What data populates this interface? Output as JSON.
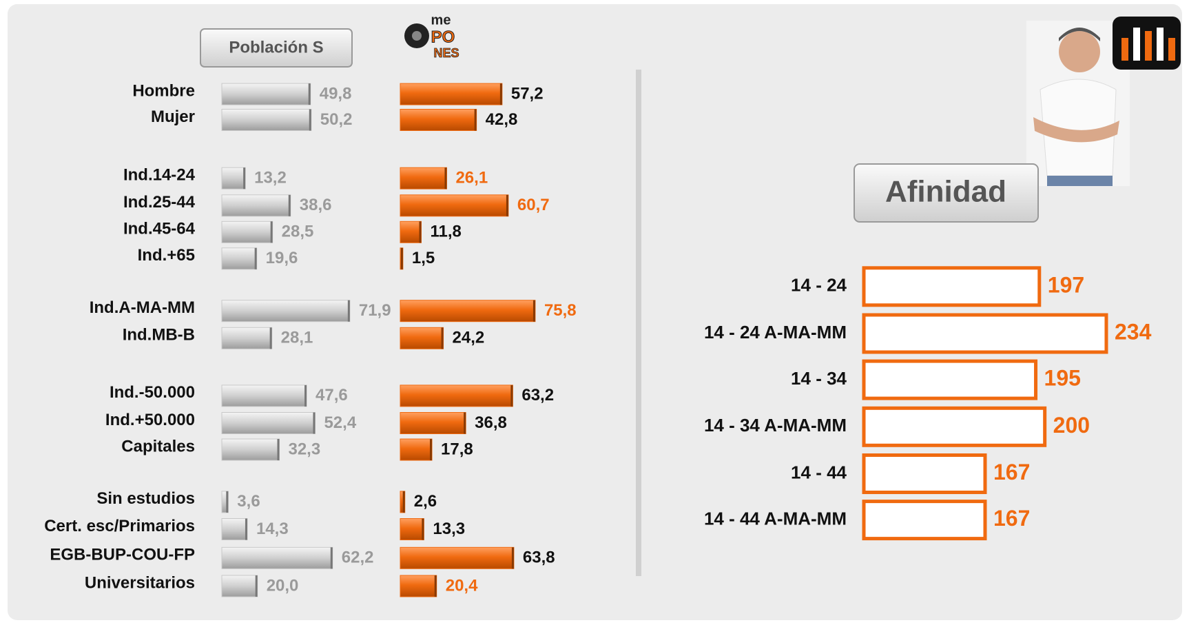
{
  "logo": {
    "lines": [
      "me",
      "PO",
      "NES"
    ]
  },
  "chart_data": [
    {
      "type": "bar",
      "orientation": "horizontal",
      "categories": [
        "Hombre",
        "Mujer",
        "Ind.14-24",
        "Ind.25-44",
        "Ind.45-64",
        "Ind.+65",
        "Ind.A-MA-MM",
        "Ind.MB-B",
        "Ind.-50.000",
        "Ind.+50.000",
        "Capitales",
        "Sin estudios",
        "Cert. esc/Primarios",
        "EGB-BUP-COU-FP",
        "Universitarios"
      ],
      "xlim": [
        0,
        100
      ],
      "series": [
        {
          "name": "Población S",
          "color": "#c8c8c8",
          "label_color": "#9a9a9a",
          "values": [
            49.8,
            50.2,
            13.2,
            38.6,
            28.5,
            19.6,
            71.9,
            28.1,
            47.6,
            52.4,
            32.3,
            3.6,
            14.3,
            62.2,
            20.0
          ],
          "value_labels": [
            "49,8",
            "50,2",
            "13,2",
            "38,6",
            "28,5",
            "19,6",
            "71,9",
            "28,1",
            "47,6",
            "52,4",
            "32,3",
            "3,6",
            "14,3",
            "62,2",
            "20,0"
          ]
        },
        {
          "color": "#f06a10",
          "values": [
            57.2,
            42.8,
            26.1,
            60.7,
            11.8,
            1.5,
            75.8,
            24.2,
            63.2,
            36.8,
            17.8,
            2.6,
            13.3,
            63.8,
            20.4
          ],
          "value_labels": [
            "57,2",
            "42,8",
            "26,1",
            "60,7",
            "11,8",
            "1,5",
            "75,8",
            "24,2",
            "63,2",
            "36,8",
            "17,8",
            "2,6",
            "13,3",
            "63,8",
            "20,4"
          ],
          "value_label_colors": [
            "#111",
            "#111",
            "#f06a10",
            "#f06a10",
            "#111",
            "#111",
            "#f06a10",
            "#111",
            "#111",
            "#111",
            "#111",
            "#111",
            "#111",
            "#111",
            "#f06a10"
          ]
        }
      ]
    },
    {
      "type": "bar",
      "orientation": "horizontal",
      "title": "Afinidad",
      "categories": [
        "14 - 24",
        "14 - 24 A-MA-MM",
        "14 - 34",
        "14 - 34 A-MA-MM",
        "14 - 44",
        "14 - 44 A-MA-MM"
      ],
      "values": [
        197,
        234,
        195,
        200,
        167,
        167
      ],
      "color": "#f06a10",
      "xlim": [
        100,
        250
      ]
    }
  ]
}
